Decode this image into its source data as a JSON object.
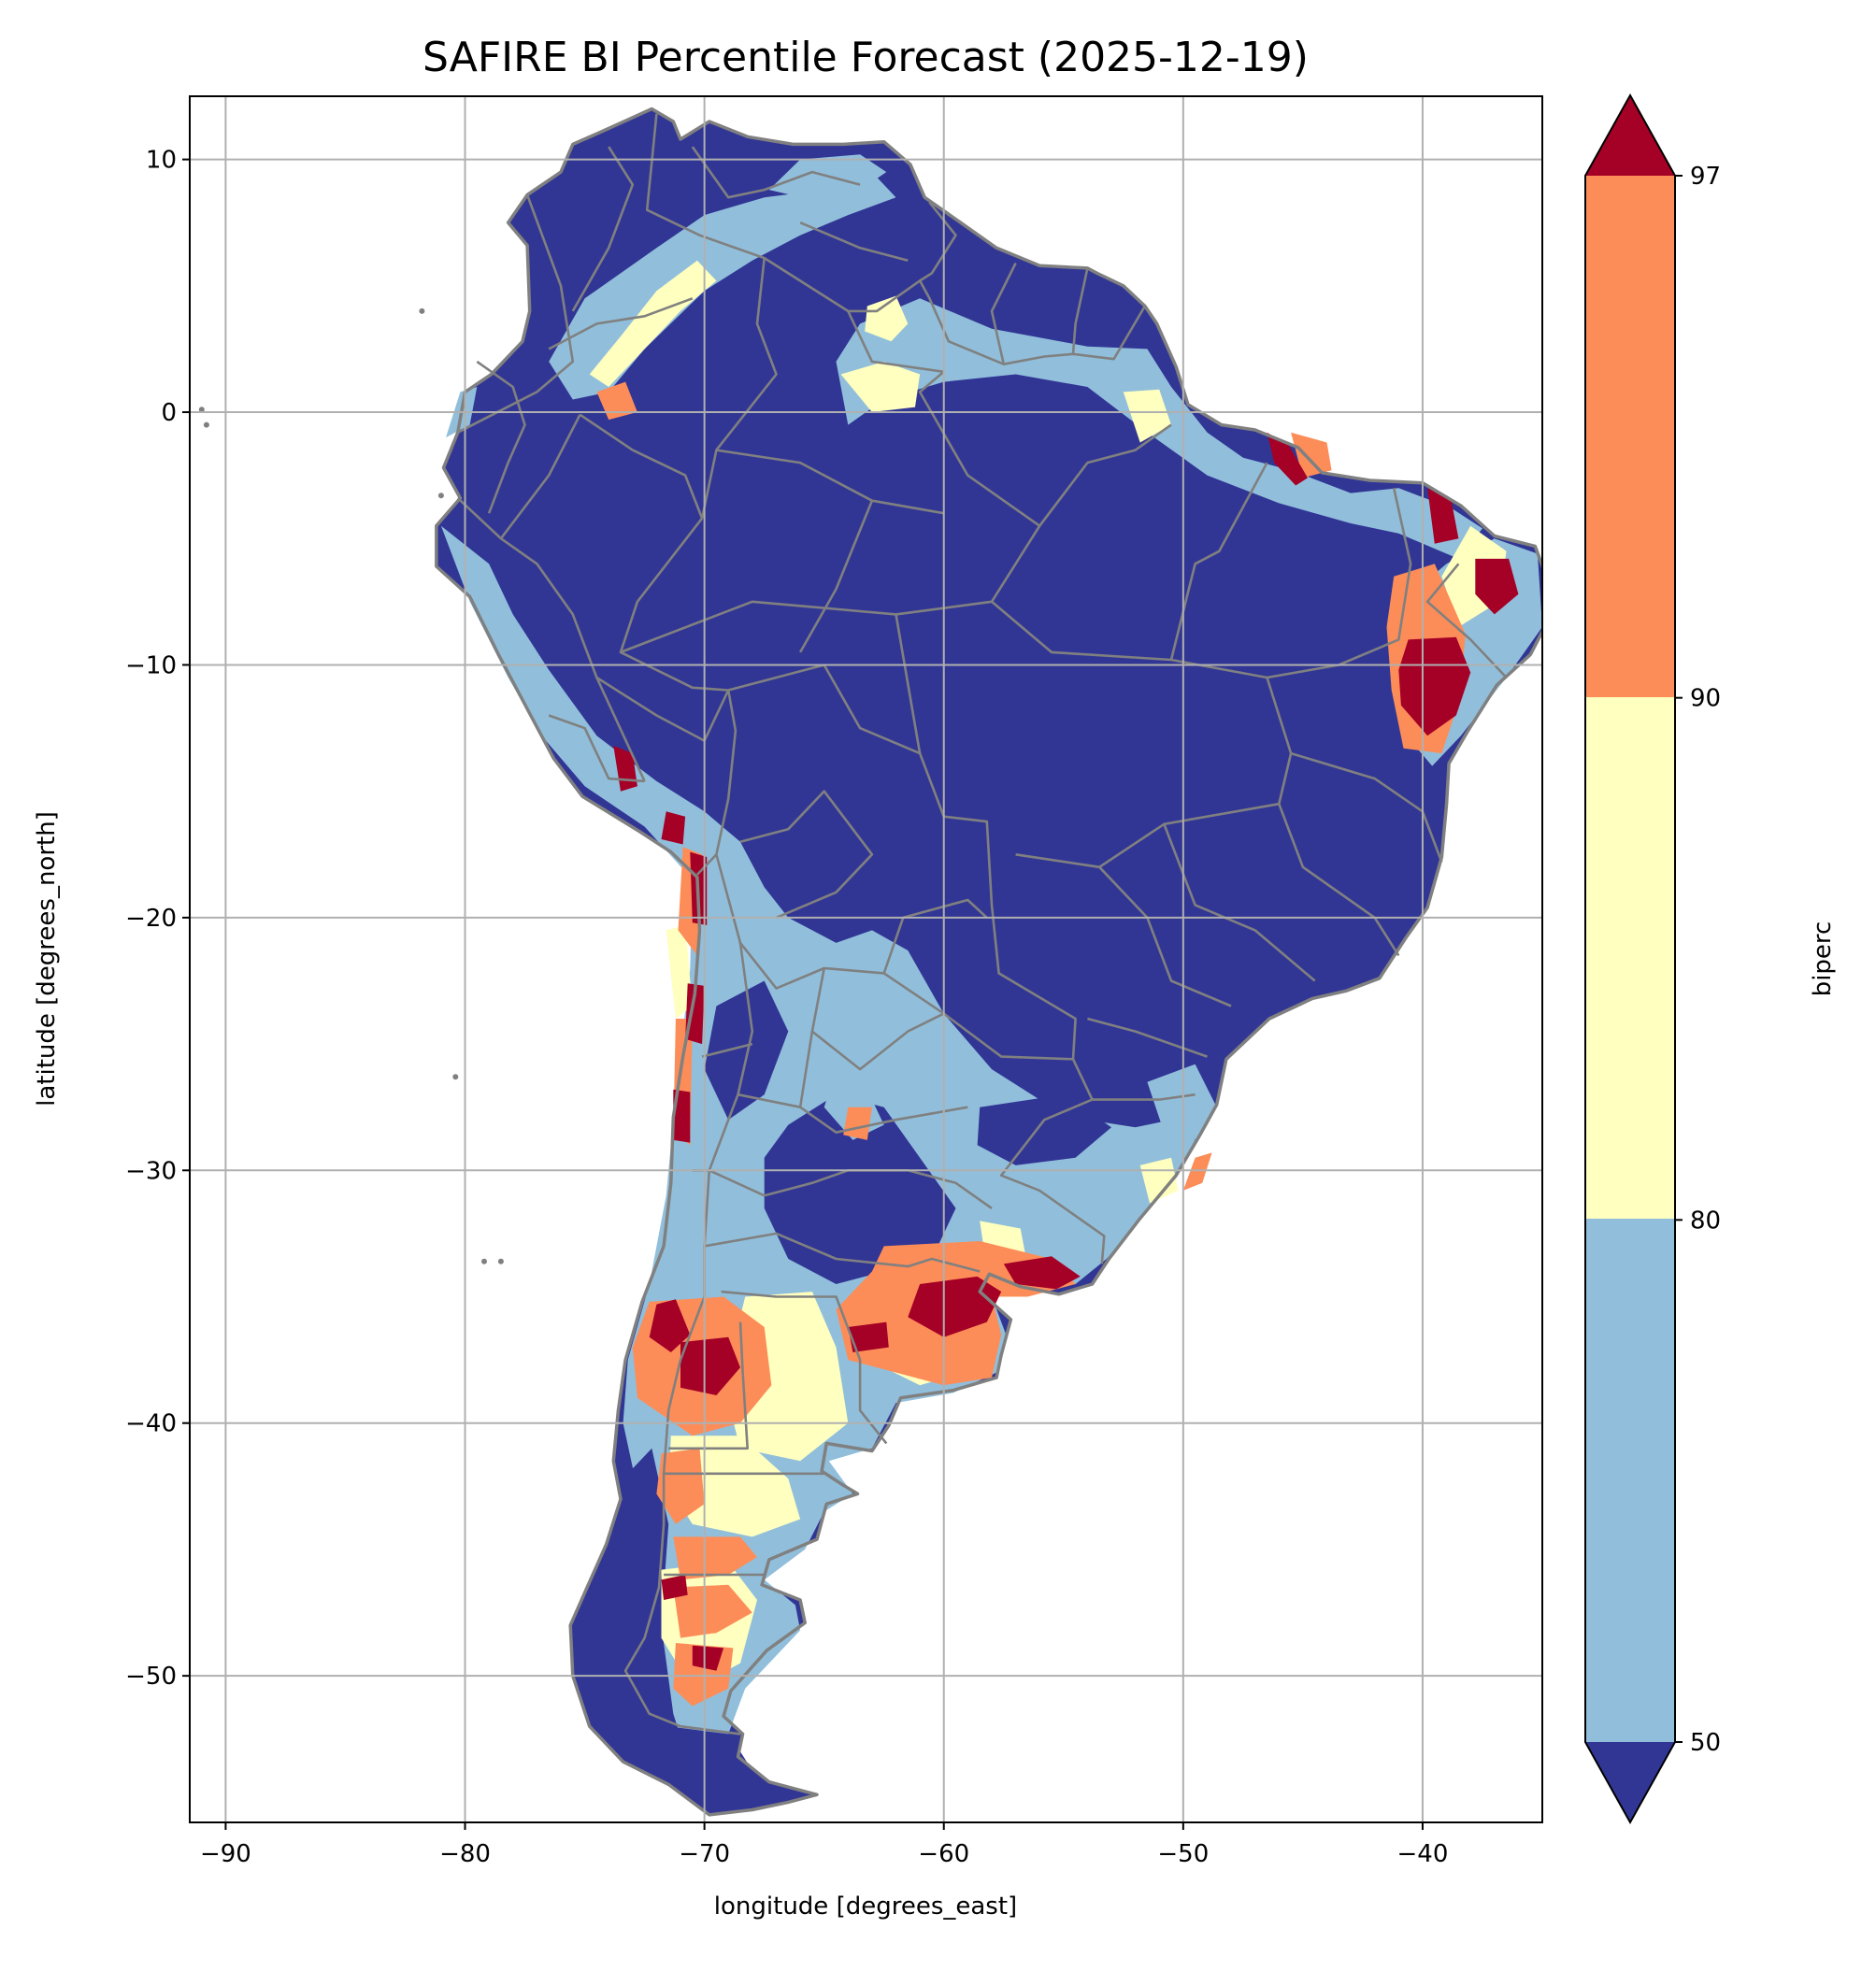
{
  "title": "SAFIRE BI Percentile Forecast (2025-12-19)",
  "chart_data": {
    "type": "heatmap",
    "title": "SAFIRE BI Percentile Forecast (2025-12-19)",
    "xlabel": "longitude [degrees_east]",
    "ylabel": "latitude [degrees_north]",
    "xlim": [
      -91.5,
      -35
    ],
    "ylim": [
      -55.8,
      12.5
    ],
    "xticks": [
      -90,
      -80,
      -70,
      -60,
      -50,
      -40
    ],
    "xtick_labels": [
      "−90",
      "−80",
      "−70",
      "−60",
      "−50",
      "−40"
    ],
    "yticks": [
      10,
      0,
      -10,
      -20,
      -30,
      -40,
      -50
    ],
    "ytick_labels": [
      "10",
      "0",
      "−10",
      "−20",
      "−30",
      "−40",
      "−50"
    ],
    "grid": true,
    "colorbar": {
      "label": "biperc",
      "levels": [
        50,
        80,
        90,
        97
      ],
      "level_labels": [
        "50",
        "80",
        "90",
        "97"
      ],
      "extend": "both",
      "colors": {
        "under": "#313695",
        "b50_80": "#91bfdb",
        "b80_90": "#ffffbf",
        "b90_97": "#fc8d59",
        "over": "#a50026"
      }
    },
    "border_color": "#808080",
    "grid_color": "#b0b0b0"
  }
}
